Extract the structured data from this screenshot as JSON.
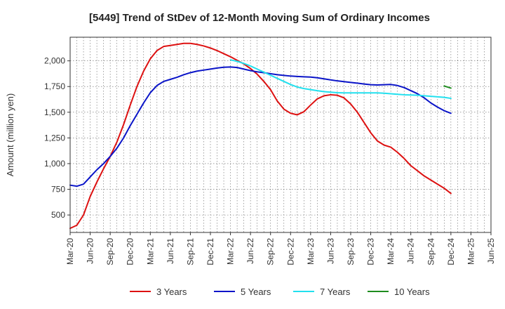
{
  "chart_data": {
    "type": "line",
    "title": "[5449]  Trend of StDev of 12-Month Moving Sum of Ordinary Incomes",
    "xlabel": "",
    "ylabel": "Amount (million yen)",
    "ylim": [
      330,
      2230
    ],
    "yticks": [
      500,
      750,
      1000,
      1250,
      1500,
      1750,
      2000
    ],
    "ytick_labels": [
      "500",
      "750",
      "1,000",
      "1,250",
      "1,500",
      "1,750",
      "2,000"
    ],
    "x_start": "Mar-20",
    "x_end": "Jun-25",
    "xticks": [
      0,
      3,
      6,
      9,
      12,
      15,
      18,
      21,
      24,
      27,
      30,
      33,
      36,
      39,
      42,
      45,
      48,
      51,
      54,
      57,
      60,
      63
    ],
    "xtick_labels": [
      "Mar-20",
      "Jun-20",
      "Sep-20",
      "Dec-20",
      "Mar-21",
      "Jun-21",
      "Sep-21",
      "Dec-21",
      "Mar-22",
      "Jun-22",
      "Sep-22",
      "Dec-22",
      "Mar-23",
      "Jun-23",
      "Sep-23",
      "Dec-23",
      "Mar-24",
      "Jun-24",
      "Sep-24",
      "Dec-24",
      "Mar-25",
      "Jun-25"
    ],
    "grid": true,
    "legend_position": "bottom",
    "series": [
      {
        "name": "3 Years",
        "color": "#dd1111",
        "start": 0,
        "values": [
          370,
          400,
          500,
          680,
          820,
          950,
          1070,
          1210,
          1380,
          1570,
          1750,
          1900,
          2020,
          2100,
          2140,
          2150,
          2160,
          2170,
          2170,
          2160,
          2145,
          2125,
          2100,
          2070,
          2040,
          2005,
          1970,
          1925,
          1870,
          1800,
          1720,
          1610,
          1530,
          1490,
          1475,
          1505,
          1570,
          1630,
          1660,
          1670,
          1665,
          1640,
          1580,
          1500,
          1400,
          1300,
          1220,
          1180,
          1160,
          1110,
          1050,
          980,
          930,
          880,
          840,
          800,
          760,
          710
        ]
      },
      {
        "name": "5 Years",
        "color": "#0a14c8",
        "start": 0,
        "values": [
          790,
          780,
          800,
          870,
          940,
          1000,
          1070,
          1150,
          1250,
          1370,
          1480,
          1590,
          1690,
          1760,
          1800,
          1820,
          1840,
          1865,
          1885,
          1900,
          1910,
          1920,
          1930,
          1938,
          1940,
          1935,
          1920,
          1905,
          1893,
          1885,
          1875,
          1865,
          1858,
          1852,
          1848,
          1845,
          1842,
          1835,
          1825,
          1815,
          1805,
          1798,
          1790,
          1783,
          1775,
          1768,
          1765,
          1768,
          1770,
          1760,
          1740,
          1710,
          1680,
          1640,
          1590,
          1550,
          1515,
          1490
        ]
      },
      {
        "name": "7 Years",
        "color": "#22e0ee",
        "start": 24,
        "values": [
          2010,
          1995,
          1975,
          1950,
          1920,
          1890,
          1860,
          1830,
          1800,
          1770,
          1745,
          1730,
          1720,
          1710,
          1700,
          1695,
          1690,
          1688,
          1688,
          1688,
          1688,
          1688,
          1688,
          1685,
          1680,
          1675,
          1670,
          1668,
          1665,
          1660,
          1655,
          1650,
          1645,
          1635
        ]
      },
      {
        "name": "10 Years",
        "color": "#1e8c1e",
        "start": 56,
        "values": [
          1755,
          1735
        ]
      }
    ]
  }
}
